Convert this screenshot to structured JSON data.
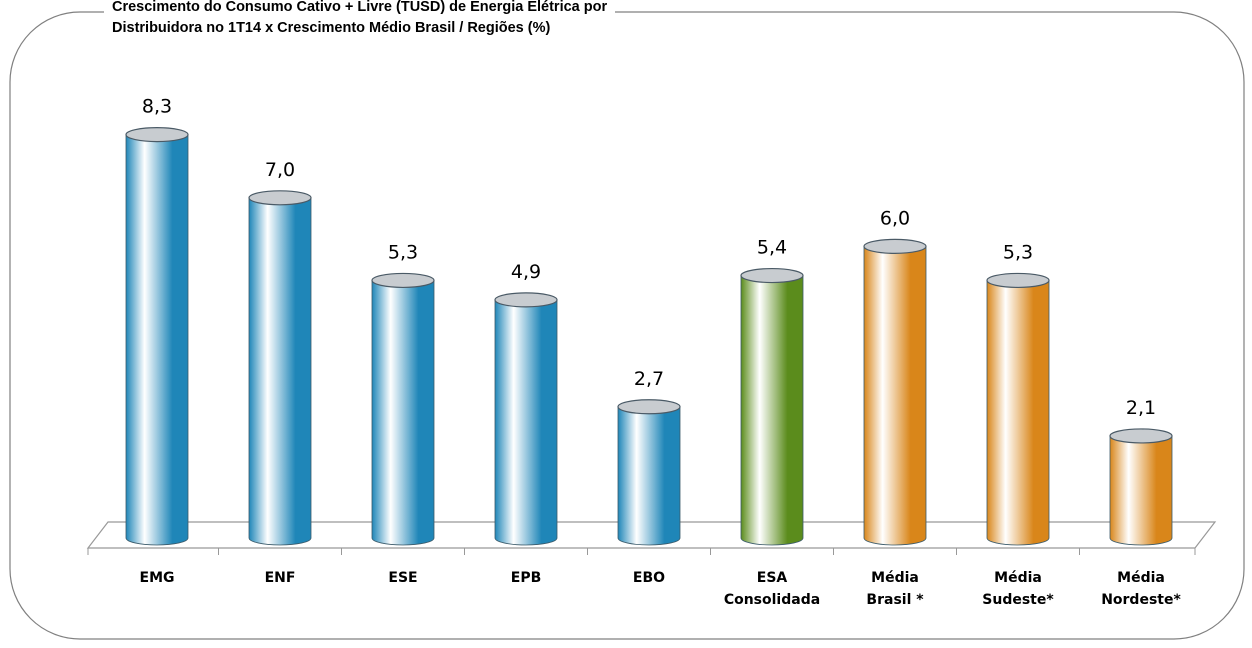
{
  "chart_data": {
    "type": "bar",
    "title": "Crescimento do Consumo Cativo + Livre (TUSD) de Energia Elétrica por\nDistribuidora no 1T14 x Crescimento Médio Brasil / Regiões (%)",
    "categories": [
      "EMG",
      "ENF",
      "ESE",
      "EPB",
      "EBO",
      "ESA\nConsolidada",
      "Média\nBrasil *",
      "Média\nSudeste*",
      "Média\nNordeste*"
    ],
    "values": [
      8.3,
      7.0,
      5.3,
      4.9,
      2.7,
      5.4,
      6.0,
      5.3,
      2.1
    ],
    "value_labels": [
      "8,3",
      "7,0",
      "5,3",
      "4,9",
      "2,7",
      "5,4",
      "6,0",
      "5,3",
      "2,1"
    ],
    "colors": [
      "#1f86b8",
      "#1f86b8",
      "#1f86b8",
      "#1f86b8",
      "#1f86b8",
      "#5b8c1c",
      "#d9861a",
      "#d9861a",
      "#d9861a"
    ]
  }
}
